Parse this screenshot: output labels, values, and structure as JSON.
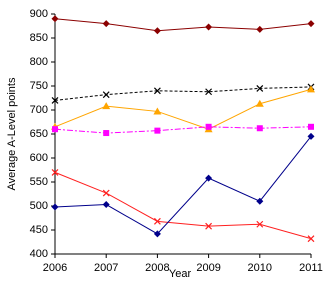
{
  "chart_data": {
    "type": "line",
    "x_label": "Year",
    "y_label": "Average A-Level points",
    "x": [
      2006,
      2007,
      2008,
      2009,
      2010,
      2011
    ],
    "xlim": [
      2006,
      2011
    ],
    "xticks": [
      2006,
      2007,
      2008,
      2009,
      2010,
      2011
    ],
    "ylim": [
      400,
      900
    ],
    "yticks": [
      400,
      450,
      500,
      550,
      600,
      650,
      700,
      750,
      800,
      850,
      900
    ],
    "grid": false,
    "series": [
      {
        "color": "#8b0000",
        "dash": "solid",
        "marker": "diamond",
        "values": [
          890,
          880,
          865,
          873,
          868,
          880
        ]
      },
      {
        "color": "#000000",
        "dash": "dashed",
        "marker": "x",
        "values": [
          720,
          732,
          740,
          738,
          745,
          748
        ]
      },
      {
        "color": "#ffa500",
        "dash": "solid",
        "marker": "triangle",
        "values": [
          665,
          708,
          697,
          660,
          713,
          743
        ]
      },
      {
        "color": "#ff00ff",
        "dash": "dashdot",
        "marker": "square",
        "values": [
          660,
          652,
          657,
          665,
          662,
          665
        ]
      },
      {
        "color": "#ff2020",
        "dash": "solid",
        "marker": "x",
        "values": [
          570,
          527,
          468,
          458,
          462,
          432
        ]
      },
      {
        "color": "#00008b",
        "dash": "solid",
        "marker": "diamond",
        "values": [
          498,
          503,
          442,
          558,
          510,
          645
        ]
      }
    ]
  }
}
